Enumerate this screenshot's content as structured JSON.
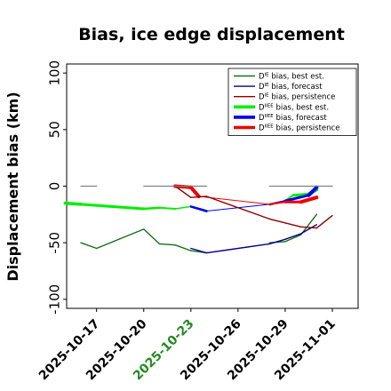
{
  "chart_data": {
    "type": "line",
    "title": "Bias, ice edge displacement",
    "ylabel": "Displacement bias (km)",
    "xlabel": "",
    "ylim": [
      -108,
      108
    ],
    "yticks": [
      100,
      50,
      0,
      -50,
      -100
    ],
    "xlim": [
      "2025-10-16",
      "2025-11-01"
    ],
    "xticks": [
      {
        "date": "2025-10-17",
        "label": "2025-10-17",
        "color": "#000000"
      },
      {
        "date": "2025-10-20",
        "label": "2025-10-20",
        "color": "#000000"
      },
      {
        "date": "2025-10-23",
        "label": "2025-10-23",
        "color": "#228b22"
      },
      {
        "date": "2025-10-26",
        "label": "2025-10-26",
        "color": "#000000"
      },
      {
        "date": "2025-10-29",
        "label": "2025-10-29",
        "color": "#000000"
      },
      {
        "date": "2025-11-01",
        "label": "2025-11-01",
        "color": "#000000"
      }
    ],
    "legend_position": "top-right",
    "legend": [
      {
        "base": "D",
        "sup": "IE",
        "text": " bias, best est.",
        "color": "#1a6e1a",
        "width": 1.4
      },
      {
        "base": "D",
        "sup": "IE",
        "text": " bias, forecast",
        "color": "#00008b",
        "width": 1.4
      },
      {
        "base": "D",
        "sup": "IE",
        "text": " bias, persistence",
        "color": "#8b0000",
        "width": 1.4
      },
      {
        "base": "D",
        "sup": "IIEE",
        "text": " bias, best est.",
        "color": "#00ee00",
        "width": 3.6
      },
      {
        "base": "D",
        "sup": "IIEE",
        "text": " bias, forecast",
        "color": "#0000ee",
        "width": 3.6
      },
      {
        "base": "D",
        "sup": "IIEE",
        "text": " bias, persistence",
        "color": "#ee0000",
        "width": 3.6
      }
    ],
    "series": [
      {
        "color": "#00ee00",
        "width_start": 3.5,
        "width_end": 1.0,
        "points": [
          [
            "2025-10-15",
            -15
          ],
          [
            "2025-10-16",
            -16
          ],
          [
            "2025-10-20",
            -20
          ],
          [
            "2025-10-21",
            -19
          ],
          [
            "2025-10-22",
            -20
          ],
          [
            "2025-10-23",
            -18
          ],
          [
            "2025-10-24",
            -23
          ]
        ]
      },
      {
        "color": "#00ee00",
        "width_start": 1.0,
        "width_end": 4.0,
        "points": [
          [
            "2025-10-28",
            -17
          ],
          [
            "2025-10-29",
            -13
          ],
          [
            "2025-10-29.5",
            -8
          ],
          [
            "2025-10-30.5",
            -7
          ],
          [
            "2025-10-31",
            -3
          ]
        ]
      },
      {
        "color": "#0000ee",
        "width_start": 4.0,
        "width_end": 1.0,
        "points": [
          [
            "2025-10-23",
            -18
          ],
          [
            "2025-10-24",
            -22
          ]
        ]
      },
      {
        "color": "#0000ee",
        "width_start": 1.0,
        "width_end": 4.0,
        "points": [
          [
            "2025-10-24",
            -22
          ],
          [
            "2025-10-28",
            -16
          ],
          [
            "2025-10-29",
            -13
          ],
          [
            "2025-10-30.5",
            -8
          ],
          [
            "2025-10-31",
            -1
          ]
        ]
      },
      {
        "color": "#ee0000",
        "width_start": 4.0,
        "width_end": 4.0,
        "points": [
          [
            "2025-10-22",
            0
          ],
          [
            "2025-10-23",
            -1
          ],
          [
            "2025-10-23.5",
            -9
          ]
        ]
      },
      {
        "color": "#ee0000",
        "width_start": 1.0,
        "width_end": 4.0,
        "points": [
          [
            "2025-10-23.5",
            -9
          ],
          [
            "2025-10-28",
            -16
          ],
          [
            "2025-10-29",
            -14
          ],
          [
            "2025-10-30",
            -14
          ],
          [
            "2025-10-31",
            -10
          ]
        ]
      },
      {
        "color": "#1a6e1a",
        "width_start": 1.4,
        "width_end": 1.4,
        "points": [
          [
            "2025-10-16",
            -50
          ],
          [
            "2025-10-17",
            -55
          ],
          [
            "2025-10-20",
            -38
          ],
          [
            "2025-10-21",
            -51
          ],
          [
            "2025-10-22",
            -52
          ],
          [
            "2025-10-23",
            -57
          ],
          [
            "2025-10-24",
            -59
          ]
        ]
      },
      {
        "color": "#1a6e1a",
        "width_start": 1.4,
        "width_end": 1.4,
        "points": [
          [
            "2025-10-28",
            -50
          ],
          [
            "2025-10-29",
            -49
          ],
          [
            "2025-10-30",
            -43
          ],
          [
            "2025-10-31",
            -25
          ]
        ]
      },
      {
        "color": "#00008b",
        "width_start": 1.4,
        "width_end": 1.4,
        "points": [
          [
            "2025-10-23",
            -55
          ],
          [
            "2025-10-24",
            -59
          ],
          [
            "2025-10-28",
            -51
          ],
          [
            "2025-10-29",
            -47
          ],
          [
            "2025-10-30",
            -42
          ],
          [
            "2025-10-31",
            -34
          ]
        ]
      },
      {
        "color": "#8b0000",
        "width_start": 1.4,
        "width_end": 1.4,
        "points": [
          [
            "2025-10-22",
            0
          ],
          [
            "2025-10-23",
            -10
          ],
          [
            "2025-10-24",
            -9
          ],
          [
            "2025-10-28",
            -29
          ],
          [
            "2025-10-30",
            -36
          ],
          [
            "2025-10-31",
            -37
          ],
          [
            "2025-11-01",
            -26
          ]
        ]
      },
      {
        "color": "#808080",
        "width_start": 1.2,
        "width_end": 1.2,
        "points": [
          [
            "2025-10-16",
            0
          ],
          [
            "2025-10-17",
            0
          ]
        ]
      },
      {
        "color": "#808080",
        "width_start": 1.2,
        "width_end": 1.2,
        "points": [
          [
            "2025-10-20",
            0
          ],
          [
            "2025-10-24",
            0
          ]
        ]
      },
      {
        "color": "#808080",
        "width_start": 1.2,
        "width_end": 1.2,
        "points": [
          [
            "2025-10-28",
            0
          ],
          [
            "2025-11-01",
            0
          ]
        ]
      }
    ]
  }
}
